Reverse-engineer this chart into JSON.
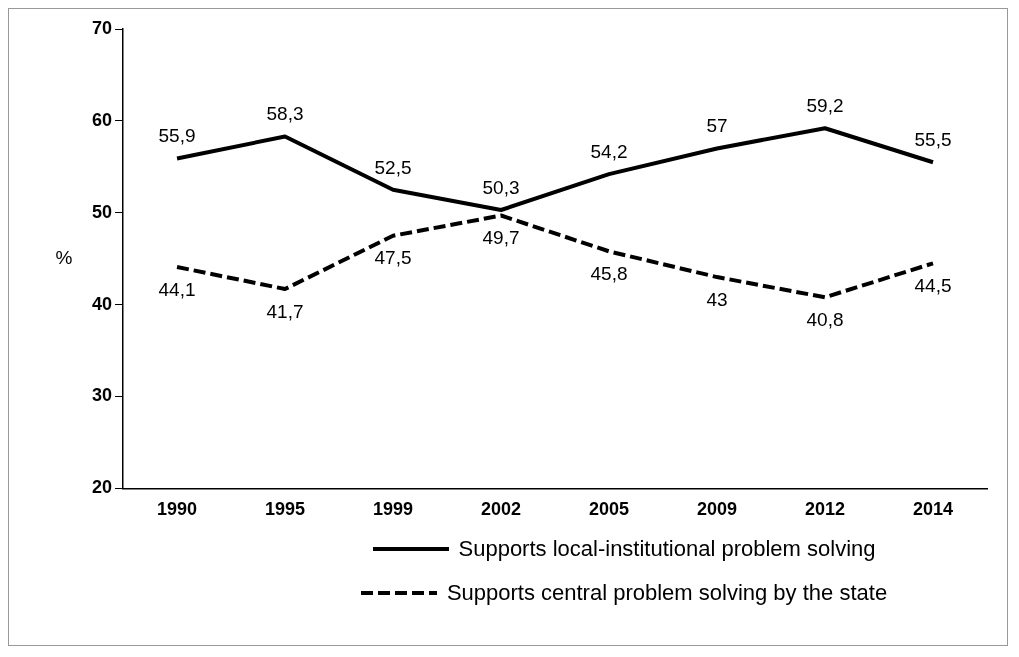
{
  "chart_data": {
    "type": "line",
    "ylabel": "%",
    "categories": [
      "1990",
      "1995",
      "1999",
      "2002",
      "2005",
      "2009",
      "2012",
      "2014"
    ],
    "series": [
      {
        "name": "Supports local-institutional problem solving",
        "color": "#000000",
        "line_style": "solid",
        "values": [
          55.9,
          58.3,
          52.5,
          50.3,
          54.2,
          57,
          59.2,
          55.5
        ],
        "value_labels": [
          "55,9",
          "58,3",
          "52,5",
          "50,3",
          "54,2",
          "57",
          "59,2",
          "55,5"
        ]
      },
      {
        "name": "Supports central problem solving by the state",
        "color": "#000000",
        "line_style": "dashed",
        "values": [
          44.1,
          41.7,
          47.5,
          49.7,
          45.8,
          43,
          40.8,
          44.5
        ],
        "value_labels": [
          "44,1",
          "41,7",
          "47,5",
          "49,7",
          "45,8",
          "43",
          "40,8",
          "44,5"
        ]
      }
    ],
    "ylim": [
      20,
      70
    ],
    "yticks": [
      20,
      30,
      40,
      50,
      60,
      70
    ],
    "grid": false,
    "legend": "bottom",
    "marker": "none"
  }
}
